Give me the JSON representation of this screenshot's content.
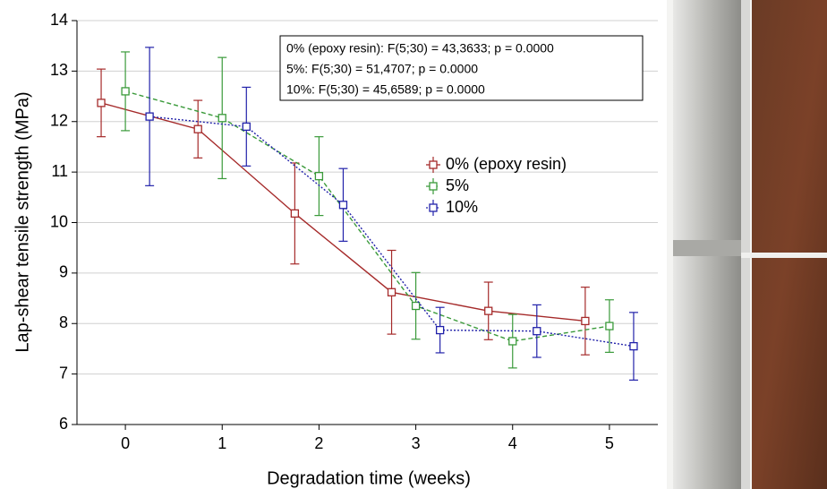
{
  "chart_data": {
    "type": "line",
    "xlabel": "Degradation time (weeks)",
    "ylabel": "Lap-shear tensile strength (MPa)",
    "annotations": [
      "0% (epoxy resin):   F(5;30) = 43,3633; p = 0.0000",
      "5%:   F(5;30) = 51,4707; p = 0.0000",
      "10%:   F(5;30) = 45,6589; p = 0.0000"
    ],
    "xlim": [
      -0.5,
      5.5
    ],
    "xticks": [
      0,
      1,
      2,
      3,
      4,
      5
    ],
    "ylim": [
      6,
      14
    ],
    "yticks": [
      6,
      7,
      8,
      9,
      10,
      11,
      12,
      13,
      14
    ],
    "grid": true,
    "legend": "right",
    "series": [
      {
        "name": "0% (epoxy resin)",
        "color": "#a52a2a",
        "dash": "solid",
        "x": [
          -0.25,
          0.75,
          1.75,
          2.75,
          3.75,
          4.75
        ],
        "values": [
          12.37,
          11.85,
          10.18,
          8.62,
          8.25,
          8.05
        ],
        "errors": [
          0.67,
          0.57,
          1.0,
          0.83,
          0.57,
          0.67
        ]
      },
      {
        "name": "5%",
        "color": "#3a9a3a",
        "dash": "dashed",
        "x": [
          0,
          1,
          2,
          3,
          4,
          5
        ],
        "values": [
          12.6,
          12.07,
          10.92,
          8.35,
          7.65,
          7.95
        ],
        "errors": [
          0.78,
          1.2,
          0.78,
          0.66,
          0.53,
          0.52
        ]
      },
      {
        "name": "10%",
        "color": "#2222aa",
        "dash": "dotted",
        "x": [
          0.25,
          1.25,
          2.25,
          3.25,
          4.25,
          5.25
        ],
        "values": [
          12.1,
          11.9,
          10.35,
          7.87,
          7.85,
          7.55
        ],
        "errors": [
          1.37,
          0.78,
          0.72,
          0.45,
          0.52,
          0.67
        ]
      }
    ]
  }
}
